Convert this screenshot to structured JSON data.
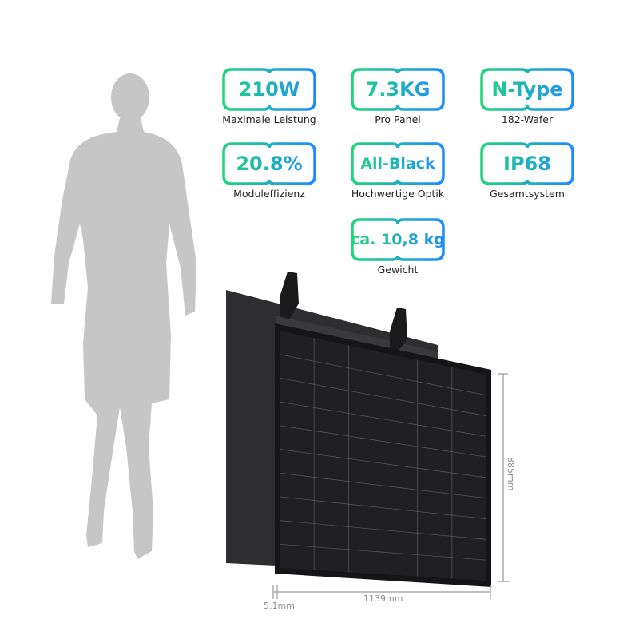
{
  "specs": [
    {
      "value": "210W",
      "label": "Maximale Leistung"
    },
    {
      "value": "7.3KG",
      "label": "Pro Panel"
    },
    {
      "value": "N-Type",
      "label": "182-Wafer"
    },
    {
      "value": "20.8%",
      "label": "Moduleffizienz"
    },
    {
      "value": "All-Black",
      "label": "Hochwertige Optik"
    },
    {
      "value": "IP68",
      "label": "Gesamtsystem"
    },
    {
      "value": "ca. 10,8 kg",
      "label": "Gewicht"
    }
  ],
  "dimensions": {
    "height": "885mm",
    "width": "1139mm",
    "thickness": "5.1mm"
  },
  "colors": {
    "gradient_start": "#1ed67a",
    "gradient_end": "#1e8cff",
    "panel": "#1c1c1e",
    "silhouette": "#c4c4c4"
  }
}
